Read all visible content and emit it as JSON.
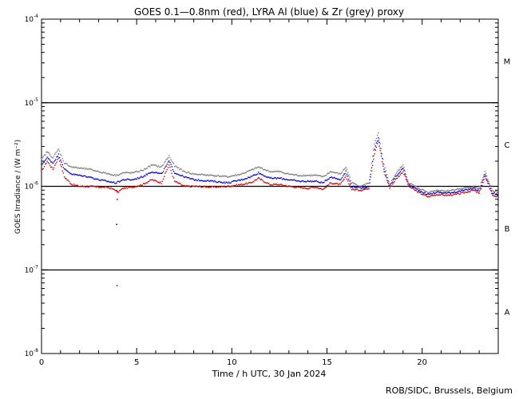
{
  "chart_data": {
    "type": "scatter",
    "title": "GOES 0.1—0.8nm (red), LYRA Al (blue) & Zr (grey) proxy",
    "xlabel": "Time / h UTC, 30 Jan 2024",
    "ylabel": "GOES Irradiance / (W m⁻²)",
    "xlim": [
      0,
      24
    ],
    "ylim_log10": [
      -8,
      -4
    ],
    "x_ticks": [
      0,
      5,
      10,
      15,
      20
    ],
    "x_tick_labels": [
      "0",
      "5",
      "10",
      "15",
      "20"
    ],
    "y_ticks_log10": [
      -8,
      -7,
      -6,
      -5,
      -4
    ],
    "y_tick_labels": [
      {
        "base": "10",
        "exp": "-8"
      },
      {
        "base": "10",
        "exp": "-7"
      },
      {
        "base": "10",
        "exp": "-6"
      },
      {
        "base": "10",
        "exp": "-5"
      },
      {
        "base": "10",
        "exp": "-4"
      }
    ],
    "flare_class_lines_log10": [
      -7,
      -6,
      -5
    ],
    "flare_classes": [
      {
        "label": "M",
        "center_log10": -4.5
      },
      {
        "label": "C",
        "center_log10": -5.5
      },
      {
        "label": "B",
        "center_log10": -6.5
      },
      {
        "label": "A",
        "center_log10": -7.5
      }
    ],
    "series": [
      {
        "color": "#d00000",
        "x": [
          0.0,
          0.3,
          0.6,
          0.9,
          1.2,
          1.6,
          2.0,
          2.5,
          3.0,
          3.5,
          3.9,
          4.0,
          4.3,
          4.8,
          5.3,
          5.8,
          6.3,
          6.7,
          7.0,
          7.5,
          8.0,
          9.0,
          9.8,
          10.5,
          11.0,
          11.4,
          12.0,
          12.5,
          13.0,
          13.5,
          14.0,
          14.4,
          14.8,
          15.2,
          15.7,
          16.0,
          16.3,
          16.8,
          17.2,
          17.5,
          17.7,
          18.0,
          18.3,
          18.6,
          19.0,
          19.3,
          19.8,
          20.3,
          20.8,
          21.3,
          21.8,
          22.3,
          22.7,
          23.0,
          23.3,
          23.7,
          24.0
        ],
        "y": [
          1.5e-06,
          2e-06,
          1.6e-06,
          2.2e-06,
          1.3e-06,
          1.05e-06,
          1e-06,
          1e-06,
          9.8e-07,
          9.7e-07,
          9e-07,
          8.5e-07,
          9.5e-07,
          9.8e-07,
          1.05e-06,
          1.2e-06,
          1.1e-06,
          1.8e-06,
          1.15e-06,
          1e-06,
          1e-06,
          9.8e-07,
          1e-06,
          1.05e-06,
          1.1e-06,
          1.25e-06,
          1.05e-06,
          1.05e-06,
          1e-06,
          9.7e-07,
          9.5e-07,
          9.8e-07,
          9.2e-07,
          1.1e-06,
          1.05e-06,
          1.3e-06,
          9.2e-07,
          9e-07,
          9.5e-07,
          2.5e-06,
          3.5e-06,
          1.5e-06,
          9.5e-07,
          1.2e-06,
          1.5e-06,
          1e-06,
          8.5e-07,
          7.5e-07,
          8e-07,
          7.8e-07,
          8e-07,
          8.5e-07,
          9e-07,
          8.2e-07,
          1.3e-06,
          7.8e-07,
          7.5e-07
        ]
      },
      {
        "color": "#0000cc",
        "x": [
          0.0,
          0.3,
          0.6,
          0.9,
          1.2,
          1.6,
          2.0,
          2.5,
          3.0,
          3.9,
          4.3,
          4.8,
          5.3,
          5.8,
          6.3,
          6.7,
          7.0,
          7.5,
          8.0,
          9.0,
          9.8,
          10.5,
          11.0,
          11.4,
          12.0,
          12.5,
          13.0,
          13.5,
          14.0,
          14.4,
          14.8,
          15.2,
          15.7,
          16.0,
          16.3,
          16.8,
          17.2,
          17.5,
          17.7,
          18.0,
          18.3,
          18.6,
          19.0,
          19.3,
          19.8,
          20.3,
          20.8,
          21.3,
          21.8,
          22.3,
          22.7,
          23.0,
          23.3,
          23.7,
          24.0
        ],
        "y": [
          1.8e-06,
          2.2e-06,
          1.9e-06,
          2.4e-06,
          1.6e-06,
          1.4e-06,
          1.35e-06,
          1.3e-06,
          1.2e-06,
          1.1e-06,
          1.2e-06,
          1.2e-06,
          1.3e-06,
          1.5e-06,
          1.4e-06,
          2e-06,
          1.45e-06,
          1.3e-06,
          1.2e-06,
          1.15e-06,
          1.1e-06,
          1.2e-06,
          1.3e-06,
          1.45e-06,
          1.25e-06,
          1.25e-06,
          1.2e-06,
          1.15e-06,
          1.15e-06,
          1.15e-06,
          1.1e-06,
          1.3e-06,
          1.2e-06,
          1.5e-06,
          1e-06,
          9.5e-07,
          1e-06,
          2.8e-06,
          3.8e-06,
          1.6e-06,
          1e-06,
          1.3e-06,
          1.65e-06,
          1.05e-06,
          9e-07,
          8e-07,
          8.5e-07,
          8.3e-07,
          8.6e-07,
          9e-07,
          9.5e-07,
          8.8e-07,
          1.4e-06,
          8.3e-07,
          8e-07
        ]
      },
      {
        "color": "#7a7a7a",
        "x": [
          0.0,
          0.3,
          0.6,
          0.9,
          1.2,
          1.6,
          2.0,
          2.5,
          3.0,
          3.9,
          4.3,
          4.8,
          5.3,
          5.8,
          6.3,
          6.7,
          7.0,
          7.5,
          8.0,
          9.0,
          9.8,
          10.5,
          11.0,
          11.4,
          12.0,
          12.5,
          13.0,
          13.5,
          14.0,
          14.4,
          14.8,
          15.2,
          15.7,
          16.0,
          16.3,
          16.8,
          17.2,
          17.5,
          17.7,
          18.0,
          18.3,
          18.6,
          19.0,
          19.3,
          19.8,
          20.3,
          20.8,
          21.3,
          21.8,
          22.3,
          22.7,
          23.0,
          23.3,
          23.7,
          24.0
        ],
        "y": [
          2.1e-06,
          2.6e-06,
          2.2e-06,
          2.8e-06,
          1.9e-06,
          1.7e-06,
          1.65e-06,
          1.6e-06,
          1.5e-06,
          1.35e-06,
          1.45e-06,
          1.45e-06,
          1.55e-06,
          1.8e-06,
          1.7e-06,
          2.3e-06,
          1.75e-06,
          1.5e-06,
          1.4e-06,
          1.35e-06,
          1.3e-06,
          1.4e-06,
          1.55e-06,
          1.7e-06,
          1.5e-06,
          1.5e-06,
          1.4e-06,
          1.35e-06,
          1.35e-06,
          1.35e-06,
          1.3e-06,
          1.5e-06,
          1.4e-06,
          1.7e-06,
          1.1e-06,
          1e-06,
          1.1e-06,
          3.2e-06,
          4.3e-06,
          1.8e-06,
          1.05e-06,
          1.4e-06,
          1.8e-06,
          1.1e-06,
          9.5e-07,
          8.5e-07,
          9e-07,
          8.8e-07,
          9.2e-07,
          9.5e-07,
          1e-06,
          9.3e-07,
          1.5e-06,
          8.8e-07,
          8.5e-07
        ]
      }
    ],
    "outliers": [
      {
        "x": 3.95,
        "y": 3.5e-07,
        "color": "#0000cc"
      },
      {
        "x": 3.97,
        "y": 6.5e-08,
        "color": "#d00000"
      },
      {
        "x": 3.98,
        "y": 7e-07,
        "color": "#d00000"
      }
    ],
    "grid": false,
    "legend": "none"
  },
  "footer": {
    "credit": "ROB/SIDC, Brussels, Belgium"
  }
}
